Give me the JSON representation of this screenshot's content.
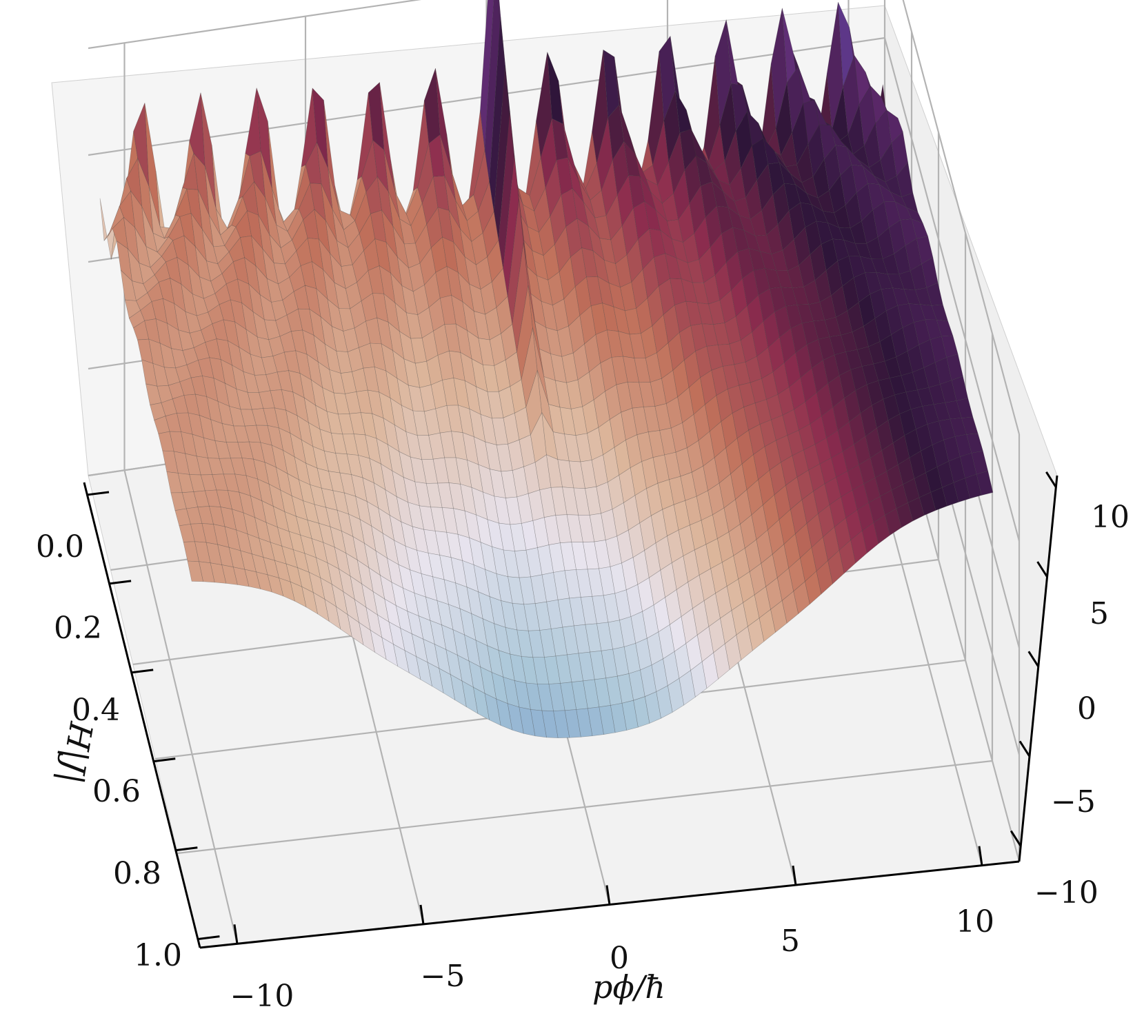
{
  "chart_data": {
    "type": "surface3d",
    "title": "",
    "xlabel": "p_ϕ/ħ",
    "ylabel": "|J|",
    "zlabel": "H",
    "left_axis_label": "H|J|",
    "bottom_axis_label": "pϕ/ħ",
    "bottom_ticks": [
      "−10",
      "−5",
      "0",
      "5",
      "10"
    ],
    "left_ticks": [
      "0.0",
      "0.2",
      "0.4",
      "0.6",
      "0.8",
      "1.0"
    ],
    "right_ticks": [
      "10",
      "5",
      "0",
      "−5",
      "−10"
    ],
    "p_range": [
      -11,
      11
    ],
    "j_range": [
      0,
      1
    ],
    "z_range": [
      -10,
      10
    ],
    "grid": true,
    "colormap": "twilight_shifted",
    "surface_color_stops": [
      "#2e1539",
      "#5f2a6e",
      "#5a4fb8",
      "#6a93c8",
      "#a9c6d8",
      "#e8e4ee",
      "#dcb59a",
      "#c0705a",
      "#8c2c4e",
      "#2e1539"
    ],
    "pane_color": "#f2f2f2",
    "grid_color": "#b0b0b0"
  }
}
